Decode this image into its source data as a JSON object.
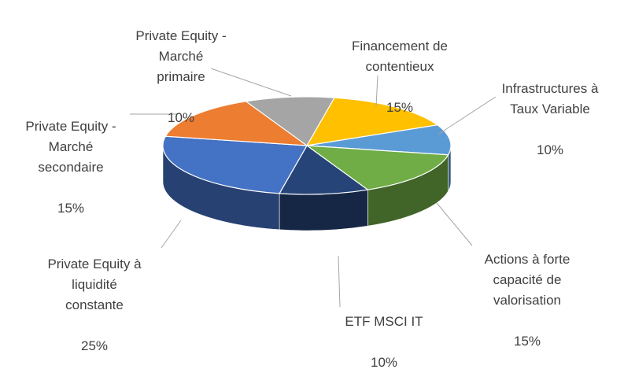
{
  "chart_data": {
    "type": "pie",
    "style": "3d-pie",
    "title": "",
    "slices": [
      {
        "label": "Financement de\ncontentieux",
        "value": 15,
        "value_label": "15%",
        "color": "#FFC000"
      },
      {
        "label": "Infrastructures à\nTaux Variable",
        "value": 10,
        "value_label": "10%",
        "color": "#5B9BD5"
      },
      {
        "label": "Actions à forte\ncapacité de\nvalorisation",
        "value": 15,
        "value_label": "15%",
        "color": "#70AD47"
      },
      {
        "label": "ETF MSCI IT",
        "value": 10,
        "value_label": "10%",
        "color": "#264478"
      },
      {
        "label": "Private Equity à\nliquidité\nconstante",
        "value": 25,
        "value_label": "25%",
        "color": "#4472C4"
      },
      {
        "label": "Private Equity -\nMarché\nsecondaire",
        "value": 15,
        "value_label": "15%",
        "color": "#ED7D31"
      },
      {
        "label": "Private Equity -\nMarché\nprimaire",
        "value": 10,
        "value_label": "10%",
        "color": "#A5A5A5"
      }
    ],
    "legend": "none",
    "data_labels": "outside-with-leader-lines"
  }
}
